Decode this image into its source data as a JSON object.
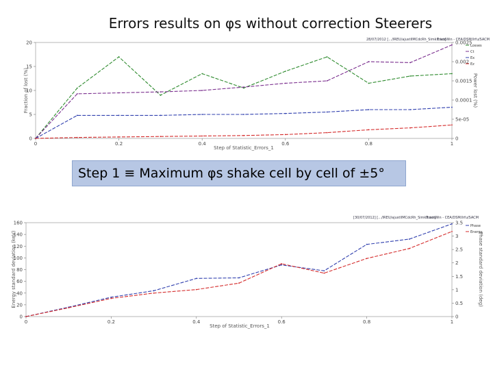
{
  "slide": {
    "title": "Errors results on φs without correction Steerers",
    "banner": "Step 1 ≡ Maximum φs shake cell by cell of ±5°"
  },
  "chart_data": [
    {
      "type": "line",
      "header_left": "28/07/2012 [.../IREU/ajustlIMCdcRh_Simkit.txt]",
      "header_right": "TraceWin - CEA/DSM/Irfu/SACM",
      "xlabel": "Step of Statistic_Errors_1",
      "ylabel": "Fraction of lost (%)",
      "ylabel_right": "Power lost (%)",
      "xlim": [
        0,
        1
      ],
      "ylim": [
        0,
        20
      ],
      "y2lim": [
        0,
        0.0025
      ],
      "x_ticks": [
        "0",
        "0.2",
        "0.4",
        "0.6",
        "0.8",
        "1"
      ],
      "y_ticks": [
        "0",
        "5",
        "10",
        "15",
        "20"
      ],
      "y2_ticks": [
        "0",
        "5e-05",
        "0.0001",
        "0.0015",
        "0.002",
        "0.0025"
      ],
      "x": [
        0,
        0.1,
        0.2,
        0.3,
        0.4,
        0.5,
        0.6,
        0.7,
        0.8,
        0.9,
        1.0
      ],
      "series": [
        {
          "name": "Losses",
          "color": "#2e8b2e",
          "values": [
            0,
            10.5,
            17,
            9,
            13.5,
            10.5,
            14,
            17,
            11.5,
            13,
            13.5
          ]
        },
        {
          "name": "Ct",
          "color": "#7a2e8e",
          "values": [
            0,
            9.3,
            9.5,
            9.7,
            10,
            10.7,
            11.5,
            12,
            16,
            15.8,
            19.5
          ]
        },
        {
          "name": "Ex",
          "color": "#2f3fae",
          "values": [
            0,
            4.8,
            4.8,
            4.8,
            5,
            5,
            5.2,
            5.5,
            6,
            6,
            6.5
          ]
        },
        {
          "name": "Ez",
          "color": "#d42a2a",
          "values": [
            0,
            0.2,
            0.3,
            0.4,
            0.5,
            0.6,
            0.8,
            1.2,
            1.8,
            2.2,
            2.8
          ]
        }
      ]
    },
    {
      "type": "line",
      "header_left": "[30/07/2012] [.../IREU/ajustlIMCdcRh_Simkit.txt]",
      "header_right": "TraceWin - CEA/DSM/Irfu/SACM",
      "xlabel": "Step of Statistic_Errors_1",
      "ylabel": "Energy standard deviation (keV)",
      "ylabel_right": "Phase standard deviation (deg)",
      "xlim": [
        0,
        1
      ],
      "ylim": [
        0,
        160
      ],
      "y2lim": [
        0,
        3.5
      ],
      "x_ticks": [
        "0",
        "0.2",
        "0.4",
        "0.6",
        "0.8",
        "1"
      ],
      "y_ticks": [
        "0",
        "20",
        "40",
        "60",
        "80",
        "100",
        "120",
        "140",
        "160"
      ],
      "y2_ticks": [
        "0",
        "0.5",
        "1",
        "1.5",
        "2",
        "2.5",
        "3",
        "3.5"
      ],
      "x": [
        0,
        0.1,
        0.2,
        0.3,
        0.4,
        0.5,
        0.6,
        0.7,
        0.8,
        0.9,
        1.0
      ],
      "series": [
        {
          "name": "Phase",
          "color": "#2f3fae",
          "values": [
            0,
            16,
            33,
            44,
            65,
            66,
            88,
            78,
            123,
            132,
            158
          ]
        },
        {
          "name": "Energy",
          "color": "#d42a2a",
          "values": [
            0,
            15,
            31,
            40,
            46,
            57,
            90,
            74,
            99,
            116,
            145
          ]
        }
      ]
    }
  ]
}
